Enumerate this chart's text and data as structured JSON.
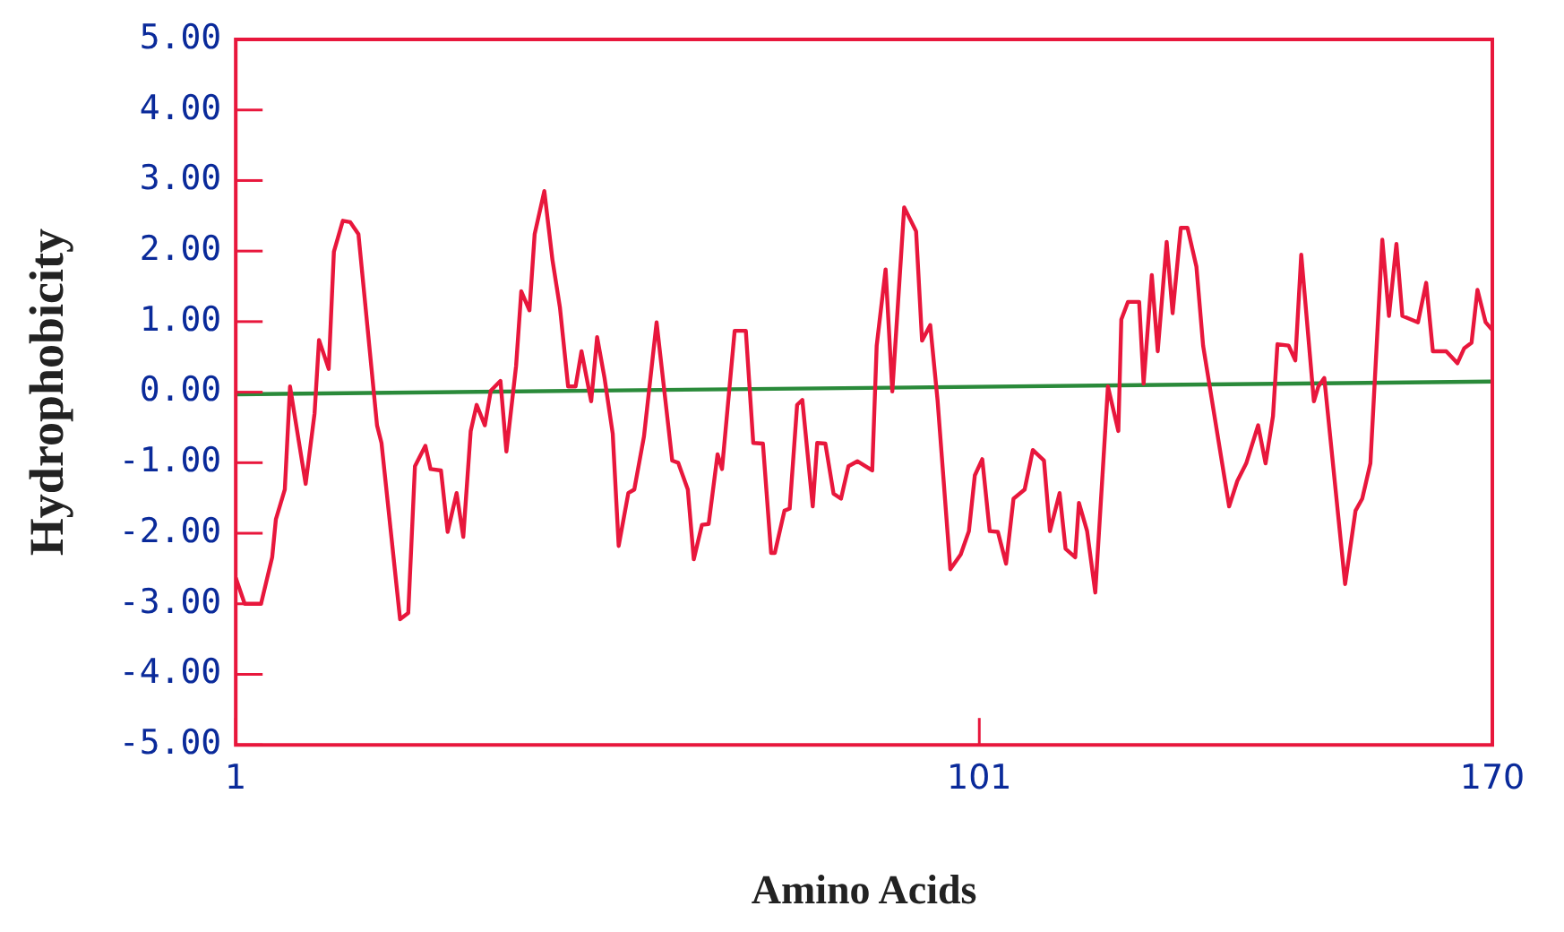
{
  "chart_data": {
    "type": "line",
    "xlabel": "Amino Acids",
    "ylabel": "Hydrophobicity",
    "xlim": [
      1,
      170
    ],
    "xticks": [
      1,
      101,
      170
    ],
    "ylim": [
      -5,
      5
    ],
    "yticks": [
      {
        "value": 5,
        "label": "5.00"
      },
      {
        "value": 4,
        "label": "4.00"
      },
      {
        "value": 3,
        "label": "3.00"
      },
      {
        "value": 2,
        "label": "2.00"
      },
      {
        "value": 1,
        "label": "1.00"
      },
      {
        "value": 0,
        "label": "0.00"
      },
      {
        "value": -1,
        "label": "-1.00"
      },
      {
        "value": -2,
        "label": "-2.00"
      },
      {
        "value": -3,
        "label": "-3.00"
      },
      {
        "value": -4,
        "label": "-4.00"
      },
      {
        "value": -5,
        "label": "-5.00"
      }
    ],
    "grid": false,
    "legend": false,
    "series": [
      {
        "color": "#e8173c",
        "x": [
          1,
          2.2,
          4.4,
          5.9,
          6.4,
          7.6,
          8.3,
          10.4,
          11.6,
          12.2,
          13.5,
          14.2,
          15.4,
          16.4,
          17.5,
          20.0,
          20.6,
          23.1,
          24.2,
          25.1,
          26.5,
          27.2,
          28.6,
          29.5,
          30.7,
          31.6,
          32.6,
          33.4,
          34.5,
          35.3,
          36.6,
          37.4,
          38.7,
          39.4,
          40.5,
          41.2,
          42.5,
          43.6,
          44.6,
          45.7,
          46.7,
          47.5,
          48.8,
          49.6,
          50.6,
          51.7,
          52.5,
          53.8,
          54.6,
          55.9,
          57.6,
          59.7,
          60.5,
          61.8,
          62.6,
          63.7,
          64.6,
          65.8,
          66.4,
          68.1,
          69.6,
          70.6,
          71.9,
          73.0,
          73.5,
          74.8,
          75.5,
          76.5,
          77.2,
          78.6,
          79.2,
          80.3,
          81.4,
          82.4,
          83.4,
          84.6,
          86.6,
          87.2,
          88.4,
          89.3,
          90.9,
          92.5,
          93.3,
          94.4,
          95.4,
          97.1,
          98.5,
          99.6,
          100.4,
          101.4,
          102.4,
          103.5,
          104.6,
          105.6,
          107.1,
          108.2,
          109.7,
          110.5,
          111.8,
          112.6,
          113.9,
          114.4,
          115.5,
          116.6,
          118.3,
          119.7,
          120.1,
          121.0,
          122.5,
          123.1,
          124.2,
          125.0,
          126.2,
          127.0,
          128.1,
          129.0,
          130.2,
          131.1,
          134.6,
          135.7,
          136.9,
          138.5,
          139.5,
          140.5,
          141.1,
          142.6,
          143.5,
          144.3,
          146.0,
          146.6,
          147.4,
          150.2,
          151.6,
          152.5,
          153.6,
          155.2,
          156.1,
          157.1,
          157.9,
          160.0,
          161.1,
          162.0,
          163.8,
          165.3,
          166.2,
          167.2,
          168.0,
          169.1,
          170
        ],
        "values": [
          -2.63,
          -3.0,
          -3.0,
          -2.34,
          -1.8,
          -1.38,
          0.08,
          -1.3,
          -0.3,
          0.74,
          0.33,
          1.99,
          2.43,
          2.41,
          2.24,
          -0.47,
          -0.72,
          -3.22,
          -3.13,
          -1.05,
          -0.76,
          -1.09,
          -1.11,
          -1.98,
          -1.43,
          -2.05,
          -0.55,
          -0.18,
          -0.47,
          0.02,
          0.16,
          -0.84,
          0.37,
          1.43,
          1.16,
          2.24,
          2.85,
          1.87,
          1.2,
          0.08,
          0.08,
          0.58,
          -0.13,
          0.78,
          0.2,
          -0.59,
          -2.18,
          -1.43,
          -1.38,
          -0.63,
          0.99,
          -0.97,
          -1.0,
          -1.38,
          -2.37,
          -1.88,
          -1.87,
          -0.88,
          -1.09,
          0.87,
          0.87,
          -0.72,
          -0.73,
          -2.28,
          -2.28,
          -1.68,
          -1.65,
          -0.18,
          -0.11,
          -1.62,
          -0.72,
          -0.73,
          -1.44,
          -1.51,
          -1.05,
          -0.98,
          -1.11,
          0.66,
          1.74,
          0.01,
          2.62,
          2.28,
          0.73,
          0.95,
          -0.13,
          -2.51,
          -2.3,
          -1.97,
          -1.18,
          -0.95,
          -1.97,
          -1.98,
          -2.43,
          -1.51,
          -1.38,
          -0.82,
          -0.97,
          -1.97,
          -1.43,
          -2.22,
          -2.34,
          -1.57,
          -1.97,
          -2.84,
          0.08,
          -0.55,
          1.03,
          1.28,
          1.28,
          0.12,
          1.66,
          0.58,
          2.13,
          1.12,
          2.33,
          2.33,
          1.78,
          0.66,
          -1.62,
          -1.26,
          -1.01,
          -0.47,
          -1.01,
          -0.34,
          0.68,
          0.66,
          0.45,
          1.95,
          -0.13,
          0.08,
          0.2,
          -2.72,
          -1.68,
          -1.51,
          -1.01,
          2.16,
          1.08,
          2.1,
          1.08,
          0.99,
          1.55,
          0.58,
          0.58,
          0.41,
          0.62,
          0.7,
          1.45,
          0.99,
          0.88
        ]
      },
      {
        "color": "#2a8a3a",
        "x": [
          1,
          170
        ],
        "values": [
          -0.03,
          0.15
        ]
      }
    ]
  }
}
